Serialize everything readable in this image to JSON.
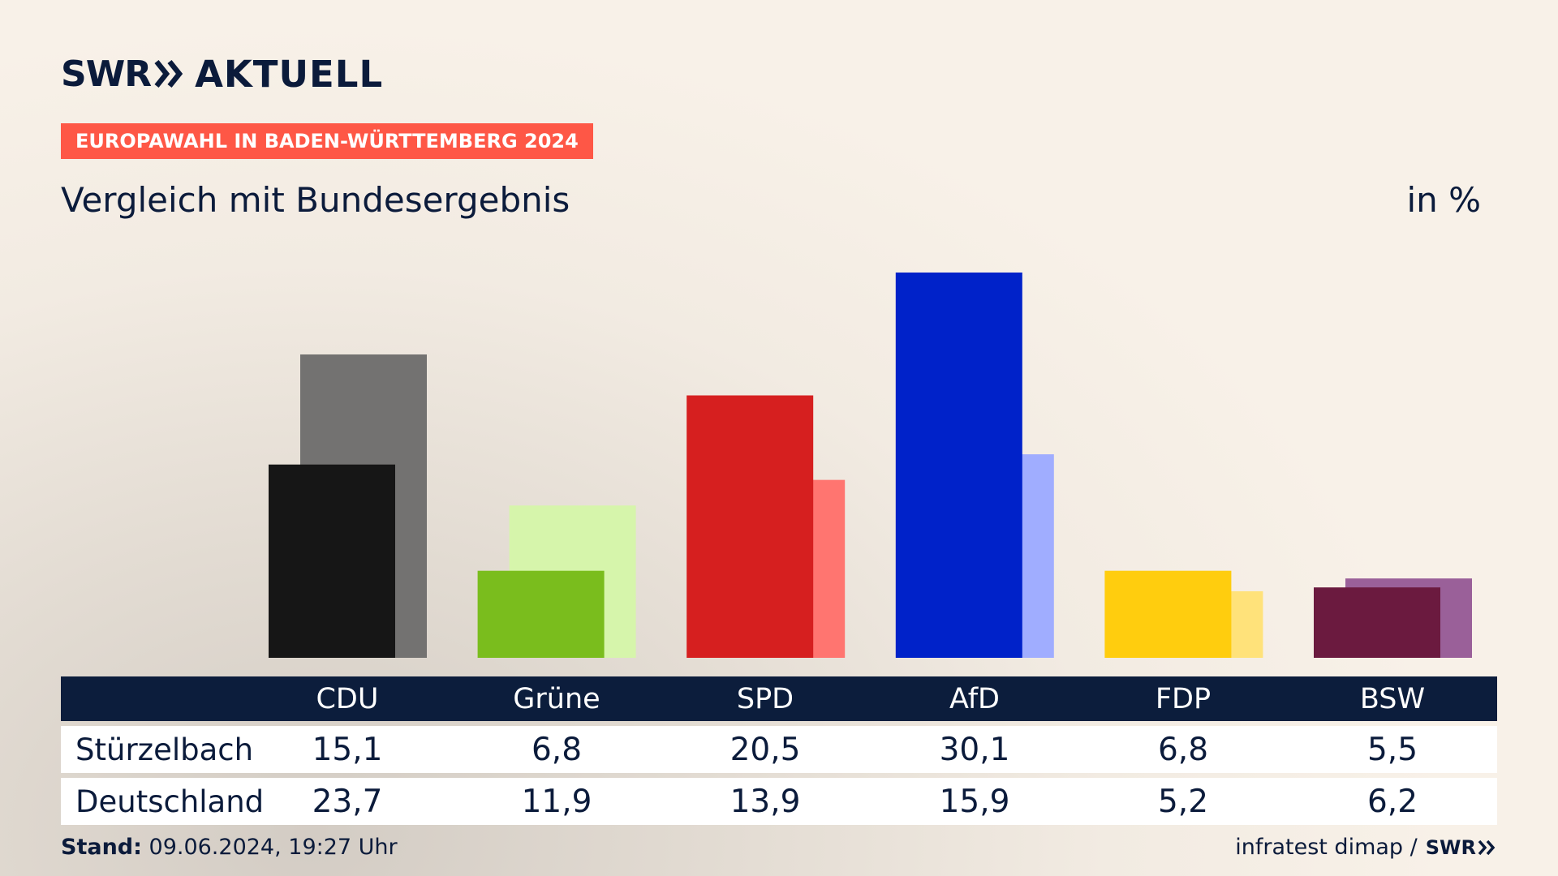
{
  "brand": {
    "logo_left": "SWR",
    "logo_right": "AKTUELL",
    "footer_logo": "SWR",
    "arrow_icon": "double-chevron-right-icon"
  },
  "header": {
    "tag": "EUROPAWAHL IN BADEN-WÜRTTEMBERG 2024",
    "subtitle": "Vergleich mit Bundesergebnis",
    "unit": "in %"
  },
  "colors": {
    "tag_bg": "#fe5746",
    "navy": "#0c1d3c"
  },
  "chart_data": {
    "type": "bar",
    "categories": [
      "CDU",
      "Grüne",
      "SPD",
      "AfD",
      "FDP",
      "BSW"
    ],
    "series": [
      {
        "name": "Stürzelbach",
        "values": [
          15.1,
          6.8,
          20.5,
          30.1,
          6.8,
          5.5
        ],
        "colors": [
          "#161616",
          "#7abd1d",
          "#d61f1f",
          "#0022c9",
          "#ffcd0e",
          "#6b1a3f"
        ]
      },
      {
        "name": "Deutschland",
        "values": [
          23.7,
          11.9,
          13.9,
          15.9,
          5.2,
          6.2
        ],
        "colors": [
          "#737271",
          "#d6f5ab",
          "#ff7570",
          "#a0adff",
          "#ffe27a",
          "#9a6099"
        ]
      }
    ],
    "ylim": [
      0,
      30.1
    ],
    "grid": false
  },
  "table": {
    "headers": [
      "CDU",
      "Grüne",
      "SPD",
      "AfD",
      "FDP",
      "BSW"
    ],
    "rows": [
      {
        "label": "Stürzelbach",
        "values": [
          "15,1",
          "6,8",
          "20,5",
          "30,1",
          "6,8",
          "5,5"
        ]
      },
      {
        "label": "Deutschland",
        "values": [
          "23,7",
          "11,9",
          "13,9",
          "15,9",
          "5,2",
          "6,2"
        ]
      }
    ]
  },
  "footer": {
    "stand_label": "Stand:",
    "stand_value": "09.06.2024, 19:27 Uhr",
    "source": "infratest dimap /"
  }
}
